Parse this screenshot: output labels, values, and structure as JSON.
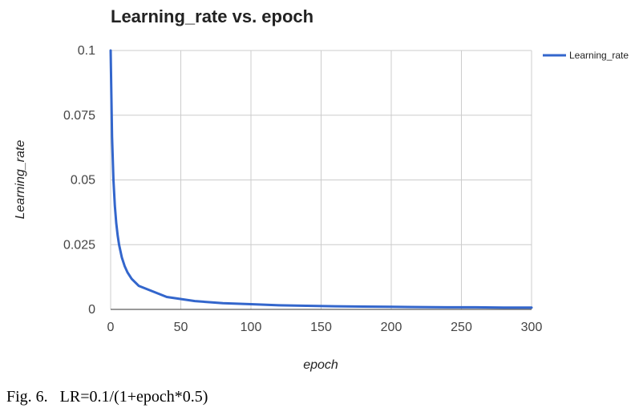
{
  "chart_data": {
    "type": "line",
    "title": "Learning_rate vs. epoch",
    "xlabel": "epoch",
    "ylabel": "Learning_rate",
    "xlim": [
      0,
      300
    ],
    "ylim": [
      0,
      0.1
    ],
    "x_ticks": [
      0,
      50,
      100,
      150,
      200,
      250,
      300
    ],
    "y_ticks": [
      0,
      0.025,
      0.05,
      0.075,
      0.1
    ],
    "y_tick_labels": [
      "0",
      "0.025",
      "0.05",
      "0.075",
      "0.1"
    ],
    "grid": true,
    "legend_position": "top-right",
    "series": [
      {
        "name": "Learning_rate",
        "color": "#3366cc",
        "x": [
          0,
          1,
          2,
          3,
          4,
          5,
          6,
          8,
          10,
          12,
          15,
          20,
          40,
          60,
          80,
          100,
          120,
          140,
          160,
          180,
          200,
          220,
          240,
          260,
          280,
          300
        ],
        "y": [
          0.1,
          0.0667,
          0.05,
          0.04,
          0.0333,
          0.0286,
          0.025,
          0.02,
          0.0167,
          0.0143,
          0.0118,
          0.0091,
          0.0048,
          0.0032,
          0.0024,
          0.002,
          0.0016,
          0.0014,
          0.0012,
          0.0011,
          0.001,
          0.0009,
          0.0008,
          0.0008,
          0.0007,
          0.0007
        ]
      }
    ]
  },
  "caption": "Fig. 6.   LR=0.1/(1+epoch*0.5)"
}
